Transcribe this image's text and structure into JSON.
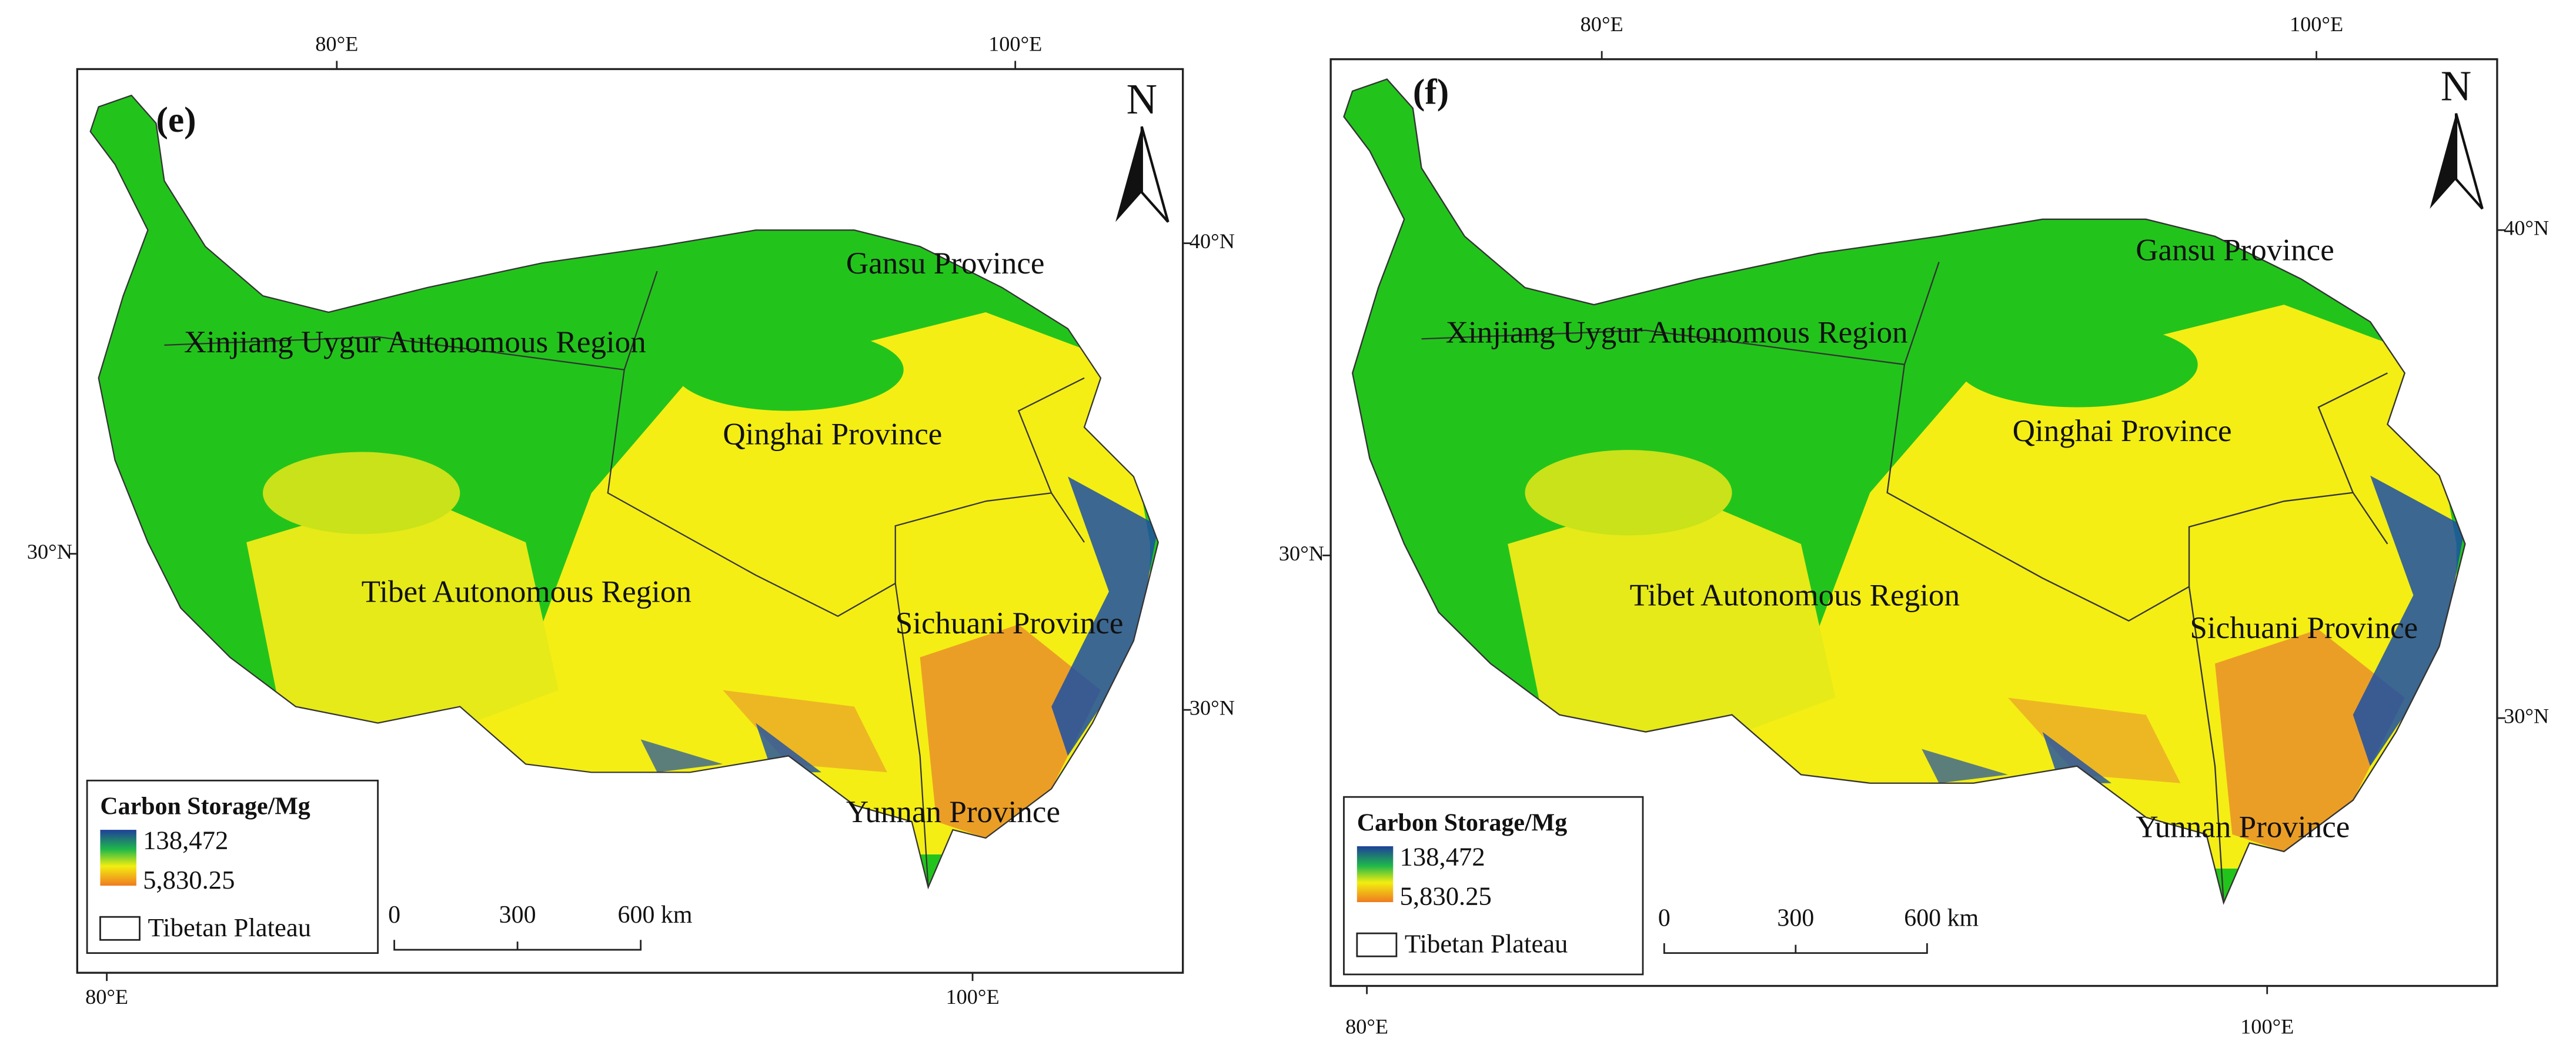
{
  "panels": [
    {
      "label": "(e)",
      "north": "N",
      "top_lon_labels": [
        "80°E",
        "100°E"
      ],
      "bottom_lon_labels": [
        "80°E",
        "100°E"
      ],
      "left_lat_labels": [
        "30°N"
      ],
      "right_lat_labels": [
        "40°N",
        "30°N"
      ],
      "regions": [
        "Gansu Province",
        "Xinjiang Uygur Autonomous Region",
        "Qinghai Province",
        "Tibet Autonomous Region",
        "Sichuani Province",
        "Yunnan Province"
      ],
      "legend": {
        "title": "Carbon Storage/Mg",
        "high": "138,472",
        "low": "5,830.25",
        "boundary": "Tibetan Plateau"
      },
      "scale_bar": [
        "0",
        "300",
        "600 km"
      ]
    },
    {
      "label": "(f)",
      "north": "N",
      "top_lon_labels": [
        "80°E",
        "100°E"
      ],
      "bottom_lon_labels": [
        "80°E",
        "100°E"
      ],
      "left_lat_labels": [
        "30°N"
      ],
      "right_lat_labels": [
        "40°N",
        "30°N"
      ],
      "regions": [
        "Gansu Province",
        "Xinjiang Uygur Autonomous Region",
        "Qinghai Province",
        "Tibet Autonomous Region",
        "Sichuani Province",
        "Yunnan Province"
      ],
      "legend": {
        "title": "Carbon Storage/Mg",
        "high": "138,472",
        "low": "5,830.25",
        "boundary": "Tibetan Plateau"
      },
      "scale_bar": [
        "0",
        "300",
        "600 km"
      ]
    }
  ]
}
